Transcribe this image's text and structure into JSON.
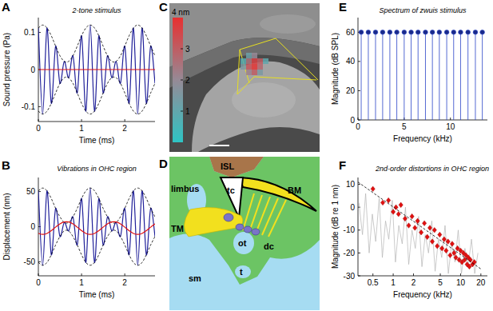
{
  "chart_data": [
    {
      "panel": "A",
      "type": "line",
      "title": "2-tone stimulus",
      "xlabel": "Time (ms)",
      "ylabel": "Sound pressure (Pa)",
      "x": [
        0,
        0.1,
        0.2,
        0.3,
        0.4,
        0.5,
        0.6,
        0.7,
        0.8,
        0.9,
        1,
        1.1,
        1.2,
        1.3,
        1.4,
        1.5,
        1.6,
        1.7,
        1.8,
        1.9,
        2,
        2.1,
        2.2,
        2.3,
        2.4,
        2.5,
        2.6,
        2.7
      ],
      "xlim": [
        0,
        2.7
      ],
      "ylim": [
        -0.14,
        0.14
      ],
      "xticks": [
        0,
        1,
        2
      ],
      "yticks": [
        -0.1,
        0,
        0.1
      ],
      "series": [
        {
          "color": "#1f1f99",
          "values": [
            0.112,
            -0.12,
            0.112,
            -0.091,
            0.063,
            -0.037,
            0.022,
            -0.022,
            0.037,
            -0.063,
            0.091,
            -0.112,
            0.12,
            -0.112,
            0.091,
            -0.063,
            0.037,
            -0.022,
            0.022,
            -0.037,
            0.063,
            -0.091,
            0.112,
            -0.12,
            0.112,
            -0.091,
            0.063,
            -0.037
          ]
        },
        {
          "color": "#000000",
          "line_style": "dashed",
          "values": [
            0.112,
            0.12,
            0.112,
            0.091,
            0.063,
            0.037,
            0.022,
            0.022,
            0.037,
            0.063,
            0.091,
            0.112,
            0.12,
            0.112,
            0.091,
            0.063,
            0.037,
            0.022,
            0.022,
            0.037,
            0.063,
            0.091,
            0.112,
            0.12,
            0.112,
            0.091,
            0.063,
            0.037
          ]
        },
        {
          "color": "#000000",
          "line_style": "dashed",
          "values": [
            -0.112,
            -0.12,
            -0.112,
            -0.091,
            -0.063,
            -0.037,
            -0.022,
            -0.022,
            -0.037,
            -0.063,
            -0.091,
            -0.112,
            -0.12,
            -0.112,
            -0.091,
            -0.063,
            -0.037,
            -0.022,
            -0.022,
            -0.037,
            -0.063,
            -0.091,
            -0.112,
            -0.12,
            -0.112,
            -0.091,
            -0.063,
            -0.037
          ]
        },
        {
          "color": "#e01010",
          "x": [
            0,
            2.7
          ],
          "values": [
            0,
            0
          ]
        }
      ]
    },
    {
      "panel": "B",
      "type": "line",
      "title": "Vibrations in OHC region",
      "xlabel": "Time (ms)",
      "ylabel": "Displacement (nm)",
      "x": [
        0,
        0.1,
        0.2,
        0.3,
        0.4,
        0.5,
        0.6,
        0.7,
        0.8,
        0.9,
        1,
        1.1,
        1.2,
        1.3,
        1.4,
        1.5,
        1.6,
        1.7,
        1.8,
        1.9,
        2,
        2.1,
        2.2,
        2.3,
        2.4,
        2.5,
        2.6,
        2.7
      ],
      "xlim": [
        0,
        2.7
      ],
      "ylim": [
        -70,
        70
      ],
      "xticks": [
        0,
        1,
        2
      ],
      "yticks": [
        -50,
        0,
        50
      ],
      "series": [
        {
          "color": "#1f1f99",
          "values": [
            51,
            -55,
            51,
            -40,
            26,
            -14,
            6,
            -6,
            14,
            -26,
            40,
            -51,
            55,
            -51,
            40,
            -26,
            14,
            -6,
            6,
            -14,
            26,
            -40,
            51,
            -55,
            51,
            -40,
            26,
            -14
          ]
        },
        {
          "color": "#000000",
          "line_style": "dashed",
          "values": [
            51,
            55,
            51,
            40,
            26,
            14,
            6,
            6,
            14,
            26,
            40,
            51,
            55,
            51,
            40,
            26,
            14,
            6,
            6,
            14,
            26,
            40,
            51,
            55,
            51,
            40,
            26,
            14
          ]
        },
        {
          "color": "#000000",
          "line_style": "dashed",
          "values": [
            -51,
            -55,
            -51,
            -40,
            -26,
            -14,
            -6,
            -6,
            -14,
            -26,
            -40,
            -51,
            -55,
            -51,
            -40,
            -26,
            -14,
            -6,
            -6,
            -14,
            -26,
            -40,
            -51,
            -55,
            -51,
            -40,
            -26,
            -14
          ]
        },
        {
          "color": "#e01010",
          "values": [
            -9.6,
            -11,
            -9.6,
            -5.7,
            -0.7,
            3.9,
            6.6,
            6.6,
            3.9,
            -0.7,
            -5.7,
            -9.6,
            -11,
            -9.6,
            -5.7,
            -0.7,
            3.9,
            6.6,
            6.6,
            3.9,
            -0.7,
            -5.7,
            -9.6,
            -11,
            -9.6,
            -5.7,
            -0.7,
            3.9
          ]
        }
      ]
    },
    {
      "panel": "E",
      "type": "stem",
      "title": "Spectrum of zwuis stimulus",
      "xlabel": "Frequency (kHz)",
      "ylabel": "Magnitude (dB SPL)",
      "x": [
        0.35,
        1.12,
        1.9,
        2.67,
        3.45,
        4.2,
        5,
        5.75,
        6.5,
        7.3,
        8.05,
        8.8,
        9.6,
        10.35,
        11.1,
        11.9,
        12.7,
        13.45
      ],
      "xlim": [
        0,
        14
      ],
      "ylim": [
        0,
        70
      ],
      "xticks": [
        0,
        5,
        10
      ],
      "yticks": [
        0,
        20,
        40,
        60
      ],
      "series": [
        {
          "color": "#2a44c8",
          "marker": "circle",
          "values": [
            60,
            60,
            60,
            60,
            60,
            60,
            60,
            60,
            60,
            60,
            60,
            60,
            60,
            60,
            60,
            60,
            60,
            60
          ]
        }
      ]
    },
    {
      "panel": "F",
      "type": "line",
      "title": "2nd-order distortions in OHC region",
      "xlabel": "Frequency (kHz)",
      "ylabel": "Magnitude (dB re 1 nm)",
      "log": "x",
      "xlim": [
        0.3,
        25
      ],
      "ylim": [
        -30,
        13
      ],
      "xticks": [
        0.5,
        1,
        2,
        5,
        10,
        20
      ],
      "yticks": [
        -30,
        -20,
        -10,
        0,
        10
      ],
      "series": [
        {
          "type": "line",
          "color": "#b4b4b4",
          "x": [
            0.31,
            0.35,
            0.39,
            0.44,
            0.49,
            0.55,
            0.62,
            0.69,
            0.77,
            0.86,
            0.97,
            1.08,
            1.21,
            1.36,
            1.52,
            1.7,
            1.9,
            2.13,
            2.38,
            2.67,
            2.99,
            3.34,
            3.74,
            4.19,
            4.69,
            5.25,
            5.88,
            6.58,
            7.37,
            8.25,
            9.23,
            10.3,
            11.6,
            12.9,
            14.5,
            16.2,
            18.1
          ],
          "values": [
            2,
            -12,
            6,
            -20,
            -3,
            -15,
            4,
            -22,
            -6,
            -14,
            3,
            -24,
            -8,
            -16,
            0,
            -25,
            -10,
            -18,
            -4,
            -26,
            -12,
            -20,
            -6,
            -28,
            -14,
            -22,
            -8,
            -29,
            -16,
            -24,
            -10,
            -29,
            -18,
            -26,
            -14,
            -29,
            -20
          ]
        },
        {
          "type": "scatter",
          "marker": "diamond",
          "color": "#e01010",
          "x": [
            0.5,
            0.7,
            0.85,
            1,
            1.1,
            1.2,
            1.3,
            1.5,
            1.7,
            1.9,
            2.1,
            2.3,
            2.6,
            2.9,
            3.2,
            3.5,
            3.8,
            4.1,
            4.5,
            4.9,
            5.3,
            5.7,
            6.1,
            6.5,
            7,
            7.5,
            8,
            8.5,
            9,
            9.5,
            10,
            10.5,
            11,
            11.5,
            12,
            12.5,
            13,
            13.5,
            14,
            15,
            16
          ],
          "values": [
            8,
            2,
            3,
            -2,
            0,
            -3,
            1,
            -5,
            -8,
            -4,
            -9,
            -6,
            -11,
            -7,
            -13,
            -9,
            -15,
            -10,
            -17,
            -12,
            -18,
            -14,
            -19,
            -15,
            -21,
            -16,
            -20,
            -22,
            -18,
            -23,
            -19,
            -24,
            -20,
            -23,
            -21,
            -25,
            -22,
            -26,
            -23,
            -25,
            -24
          ]
        },
        {
          "type": "line",
          "line_style": "dashed",
          "color": "#000000",
          "x": [
            0.3,
            20
          ],
          "values": [
            11,
            -27
          ]
        }
      ]
    }
  ],
  "image": {
    "panel": "C",
    "colorbar": {
      "range": [
        0,
        4
      ],
      "ticks": [
        1,
        2,
        3
      ],
      "label": "4 nm"
    },
    "overlay": [
      [
        null,
        1.2,
        2,
        null,
        null
      ],
      [
        0.8,
        2.5,
        3.6,
        3,
        1
      ],
      [
        1.5,
        3.2,
        3.9,
        2.8,
        null
      ],
      [
        null,
        2.2,
        3,
        1.5,
        null
      ]
    ]
  },
  "diagram": {
    "panel": "D",
    "labels": [
      "ISL",
      "limbus",
      "tc",
      "BM",
      "TM",
      "ot",
      "dc",
      "sm",
      "t"
    ]
  }
}
